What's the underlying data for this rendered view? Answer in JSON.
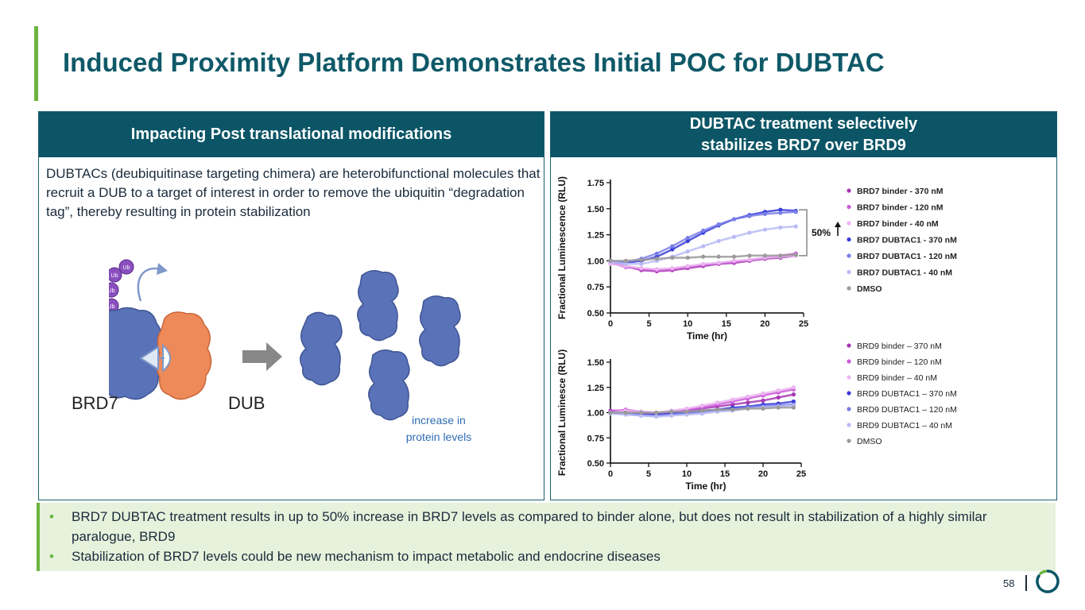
{
  "title": "Induced Proximity Platform Demonstrates Initial POC for DUBTAC",
  "left_panel": {
    "header": "Impacting Post translational modifications",
    "description": "DUBTACs (deubiquitinase targeting chimera) are heterobifunctional molecules that recruit a DUB to a target of interest in order to remove the ubiquitin “degradation tag”, thereby resulting in protein stabilization",
    "ub_label": "Ub",
    "brd7_label": "BRD7",
    "dub_label": "DUB",
    "increase_label": "increase in protein levels"
  },
  "right_panel": {
    "header_line1": "DUBTAC treatment selectively",
    "header_line2": "stabilizes BRD7 over BRD9"
  },
  "chart_data": [
    {
      "type": "scatter",
      "title": "BRD7",
      "xlabel": "Time (hr)",
      "ylabel": "Fractional Luminescence (RLU)",
      "xlim": [
        0,
        25
      ],
      "ylim": [
        0.5,
        1.75
      ],
      "xticks": [
        "0",
        "5",
        "10",
        "15",
        "20",
        "25"
      ],
      "yticks": [
        "0.50",
        "0.75",
        "1.00",
        "1.25",
        "1.50",
        "1.75"
      ],
      "annotation": "50%",
      "x": [
        0,
        2,
        4,
        6,
        8,
        10,
        12,
        14,
        16,
        18,
        20,
        22,
        24
      ],
      "series": [
        {
          "name": "BRD7 binder - 370 nM",
          "color": "#a637b4",
          "values": [
            1.0,
            0.95,
            0.91,
            0.9,
            0.91,
            0.93,
            0.95,
            0.97,
            0.98,
            1.0,
            1.02,
            1.03,
            1.05
          ]
        },
        {
          "name": "BRD7 binder -  120 nM",
          "color": "#cc5bd9",
          "values": [
            0.98,
            0.94,
            0.92,
            0.91,
            0.92,
            0.94,
            0.96,
            0.98,
            0.99,
            1.01,
            1.03,
            1.05,
            1.07
          ]
        },
        {
          "name": "BRD7 binder -  40 nM",
          "color": "#eab6f0",
          "values": [
            0.97,
            0.95,
            0.93,
            0.92,
            0.93,
            0.95,
            0.97,
            0.98,
            1.0,
            1.01,
            1.03,
            1.04,
            1.05
          ]
        },
        {
          "name": "BRD7 DUBTAC1 -  370 nM",
          "color": "#3a3fd8",
          "values": [
            1.0,
            0.98,
            1.0,
            1.04,
            1.11,
            1.19,
            1.27,
            1.34,
            1.4,
            1.44,
            1.47,
            1.49,
            1.48
          ]
        },
        {
          "name": "BRD7 DUBTAC1 - 120 nM",
          "color": "#7a7ee8",
          "values": [
            1.0,
            0.99,
            1.02,
            1.07,
            1.14,
            1.22,
            1.29,
            1.35,
            1.4,
            1.43,
            1.45,
            1.46,
            1.47
          ]
        },
        {
          "name": "BRD7 DUBTAC1 -  40 nM",
          "color": "#b9bcf3",
          "values": [
            0.99,
            0.97,
            0.97,
            1.0,
            1.04,
            1.09,
            1.14,
            1.19,
            1.23,
            1.27,
            1.3,
            1.32,
            1.33
          ]
        },
        {
          "name": "DMSO",
          "color": "#9a9a9a",
          "values": [
            1.0,
            1.0,
            1.01,
            1.02,
            1.03,
            1.03,
            1.04,
            1.04,
            1.04,
            1.05,
            1.05,
            1.05,
            1.06
          ]
        }
      ]
    },
    {
      "type": "scatter",
      "title": "BRD9",
      "xlabel": "Time (hr)",
      "ylabel": "Fractional Luminesce (RLU)",
      "xlim": [
        0,
        25
      ],
      "ylim": [
        0.5,
        1.5
      ],
      "xticks": [
        "0",
        "5",
        "10",
        "15",
        "20",
        "25"
      ],
      "yticks": [
        "0.50",
        "0.75",
        "1.00",
        "1.25",
        "1.50"
      ],
      "x": [
        0,
        2,
        4,
        6,
        8,
        10,
        12,
        14,
        16,
        18,
        20,
        22,
        24
      ],
      "series": [
        {
          "name": "BRD9 binder – 370 nM",
          "color": "#a637b4",
          "values": [
            1.02,
            1.02,
            1.0,
            0.99,
            1.0,
            1.02,
            1.04,
            1.06,
            1.08,
            1.1,
            1.12,
            1.15,
            1.18
          ]
        },
        {
          "name": "BRD9 binder – 120 nM",
          "color": "#cc5bd9",
          "values": [
            1.01,
            1.03,
            1.01,
            1.0,
            1.01,
            1.03,
            1.05,
            1.08,
            1.11,
            1.14,
            1.17,
            1.2,
            1.23
          ]
        },
        {
          "name": "BRD9 binder – 40 nM",
          "color": "#eab6f0",
          "values": [
            1.0,
            1.02,
            1.01,
            1.0,
            1.02,
            1.04,
            1.07,
            1.1,
            1.13,
            1.16,
            1.19,
            1.22,
            1.25
          ]
        },
        {
          "name": "BRD9 DUBTAC1 – 370 nM",
          "color": "#3a3fd8",
          "values": [
            1.0,
            0.99,
            0.98,
            0.98,
            0.99,
            1.0,
            1.02,
            1.03,
            1.05,
            1.06,
            1.08,
            1.09,
            1.11
          ]
        },
        {
          "name": "BRD9 DUBTAC1 – 120 nM",
          "color": "#7a7ee8",
          "values": [
            1.0,
            0.99,
            0.97,
            0.97,
            0.98,
            0.99,
            1.0,
            1.02,
            1.03,
            1.05,
            1.06,
            1.07,
            1.08
          ]
        },
        {
          "name": "BRD9 DUBTAC1 – 40 nM",
          "color": "#b9bcf3",
          "values": [
            0.99,
            0.98,
            0.97,
            0.96,
            0.97,
            0.98,
            0.99,
            1.01,
            1.02,
            1.04,
            1.05,
            1.06,
            1.07
          ]
        },
        {
          "name": "DMSO",
          "color": "#9a9a9a",
          "values": [
            1.0,
            1.0,
            1.0,
            1.0,
            1.01,
            1.01,
            1.02,
            1.03,
            1.03,
            1.04,
            1.04,
            1.05,
            1.05
          ]
        }
      ]
    }
  ],
  "bullets": [
    "BRD7 DUBTAC treatment results in up to 50% increase in BRD7 levels as compared to binder alone, but does not result in stabilization of a highly similar paralogue, BRD9",
    "Stabilization of BRD7 levels could be new mechanism to impact metabolic and endocrine diseases"
  ],
  "page_number": "58",
  "colors": {
    "title": "#0f5968",
    "header_bg": "#0b5566",
    "accent_green": "#6cb33f",
    "protein_blue": "#5a72b8",
    "dub_orange": "#ee8a5a",
    "ub_purple": "#8a4fbf"
  }
}
